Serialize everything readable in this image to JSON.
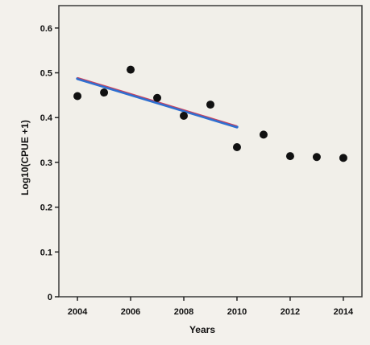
{
  "chart_data": {
    "type": "scatter",
    "title": "",
    "xlabel": "Years",
    "ylabel": "Log10(CPUE +1)",
    "xlim": [
      2003.3,
      2014.7
    ],
    "ylim": [
      0,
      0.65
    ],
    "xticks": [
      2004,
      2006,
      2008,
      2010,
      2012,
      2014
    ],
    "xtick_labels": [
      "2004",
      "2006",
      "2008",
      "2010",
      "2012",
      "2014"
    ],
    "yticks": [
      0,
      0.1,
      0.2,
      0.3,
      0.4,
      0.5,
      0.6
    ],
    "ytick_labels": [
      "0",
      "0.1",
      "0.2",
      "0.3",
      "0.4",
      "0.5",
      "0.6"
    ],
    "grid": false,
    "legend": false,
    "points": [
      {
        "x": 2004,
        "y": 0.448
      },
      {
        "x": 2005,
        "y": 0.456
      },
      {
        "x": 2006,
        "y": 0.507
      },
      {
        "x": 2007,
        "y": 0.444
      },
      {
        "x": 2008,
        "y": 0.404
      },
      {
        "x": 2009,
        "y": 0.429
      },
      {
        "x": 2010,
        "y": 0.334
      },
      {
        "x": 2011,
        "y": 0.362
      },
      {
        "x": 2012,
        "y": 0.314
      },
      {
        "x": 2013,
        "y": 0.312
      },
      {
        "x": 2014,
        "y": 0.31
      }
    ],
    "trend_line": {
      "x": [
        2004,
        2010
      ],
      "y": [
        0.487,
        0.379
      ]
    },
    "colors": {
      "points": "#111111",
      "trend_line": "#2f6fd0",
      "trend_line_overlay": "#d93b50"
    }
  }
}
